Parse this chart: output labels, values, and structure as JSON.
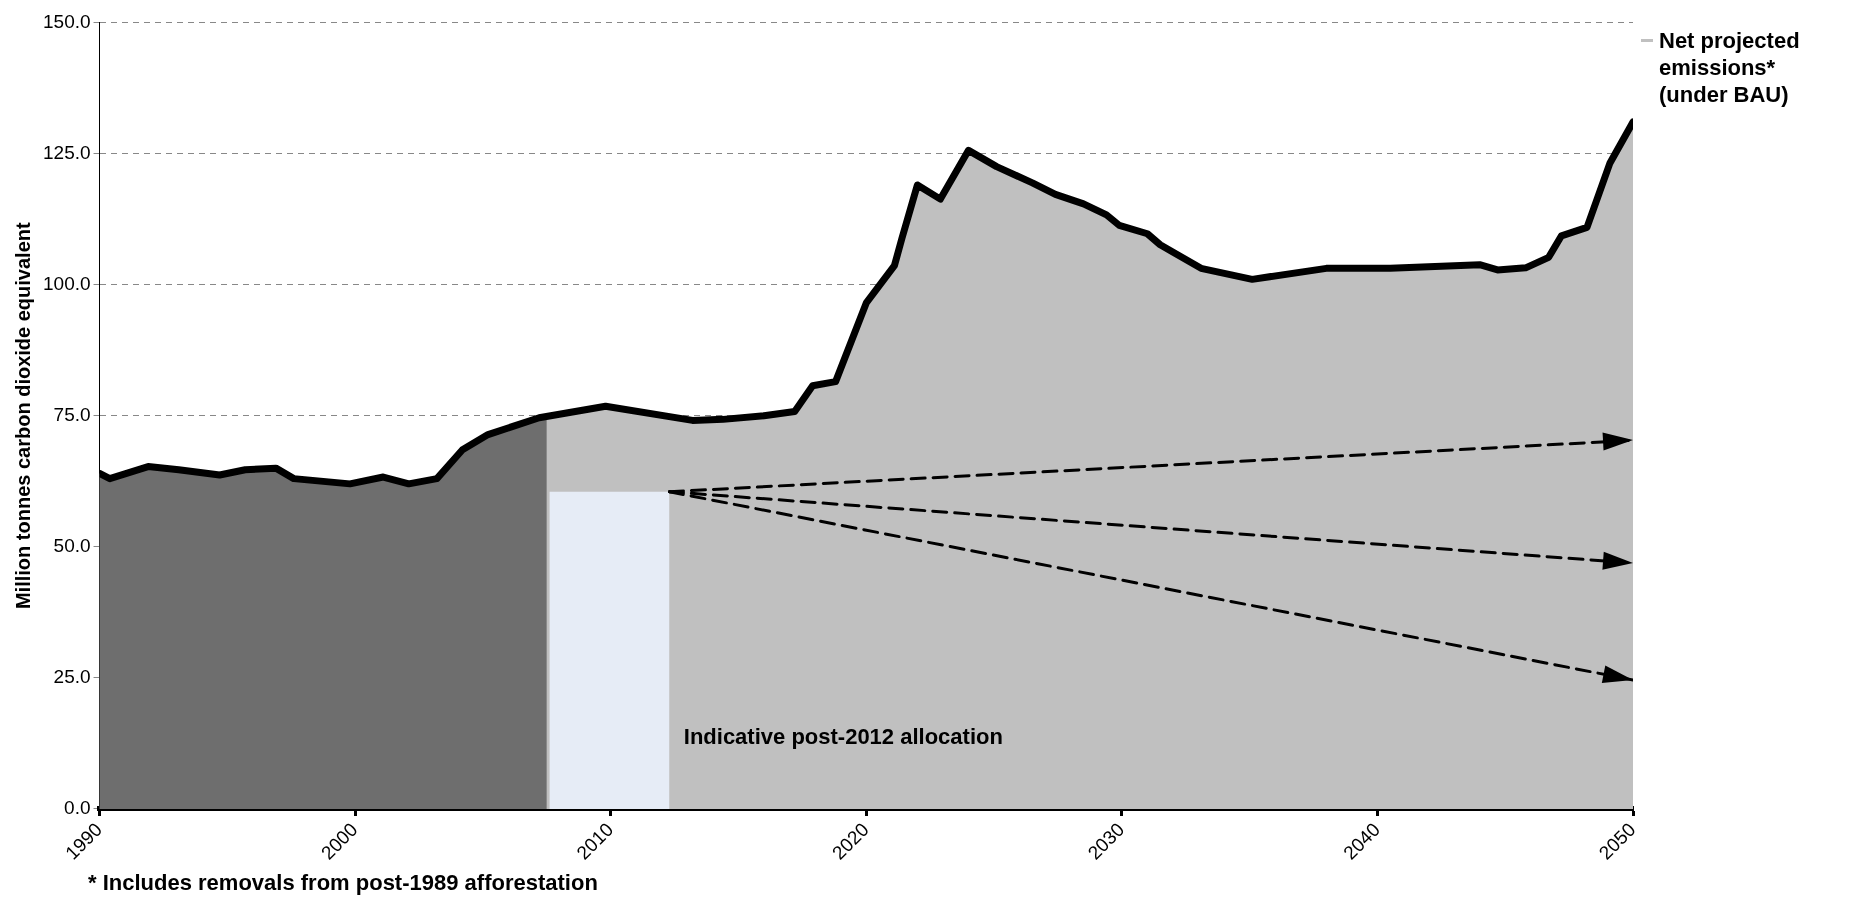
{
  "chart_data": {
    "type": "area",
    "ylabel": "Million tonnes carbon dioxide equivalent",
    "xlim": [
      1990,
      2050
    ],
    "xticks": [
      1990,
      2000,
      2010,
      2020,
      2030,
      2040,
      2050
    ],
    "ylim": [
      0,
      150
    ],
    "yticks": [
      {
        "value": 0,
        "label": "0.0"
      },
      {
        "value": 25,
        "label": "25.0"
      },
      {
        "value": 50,
        "label": "50.0"
      },
      {
        "value": 75,
        "label": "75.0"
      },
      {
        "value": 100,
        "label": "100.0"
      },
      {
        "value": 125,
        "label": "125.0"
      },
      {
        "value": 150,
        "label": "150.0"
      }
    ],
    "grid": "y",
    "legend": "right",
    "marker": "none",
    "series": [
      {
        "type": "line",
        "color": "#000000",
        "line_style": "dashed",
        "x": [
          2012.3,
          2050
        ],
        "values": [
          60.5,
          70.3
        ]
      },
      {
        "type": "line",
        "color": "#000000",
        "line_style": "dashed",
        "x": [
          2012.3,
          2050
        ],
        "values": [
          60.5,
          46.9
        ]
      },
      {
        "type": "line",
        "color": "#000000",
        "line_style": "dashed",
        "x": [
          2012.3,
          2050
        ],
        "values": [
          60.5,
          24.6
        ]
      },
      {
        "color": "#e6ecf6",
        "x": [
          2007.6,
          2012.3
        ],
        "values": [
          60.5,
          60.5
        ]
      },
      {
        "color": "#6e6e6e",
        "x": [
          1990,
          1990.4,
          1991.9,
          1993.1,
          1994.7,
          1995.7,
          1996.9,
          1997.6,
          1999.8,
          2001.1,
          2002.1,
          2003.2,
          2004.2,
          2005.2,
          2007.2,
          2007.5
        ],
        "values": [
          64.0,
          63.0,
          65.3,
          64.7,
          63.7,
          64.7,
          65.0,
          63.0,
          62.0,
          63.3,
          62.0,
          63.0,
          68.5,
          71.4,
          74.6,
          74.7
        ]
      },
      {
        "name": "Net projected emissions* (under BAU)",
        "color": "#c0c0c0",
        "x": [
          1990,
          1990.4,
          1991.9,
          1993.1,
          1994.7,
          1995.7,
          1996.9,
          1997.6,
          1999.8,
          2001.1,
          2002.1,
          2003.2,
          2004.2,
          2005.2,
          2007.2,
          2009.8,
          2013.2,
          2014.4,
          2016,
          2017.2,
          2017.9,
          2018.8,
          2020,
          2021.1,
          2021.4,
          2022,
          2022.9,
          2024,
          2025.1,
          2026.5,
          2027.4,
          2028.5,
          2029.4,
          2029.9,
          2031,
          2031.5,
          2033.1,
          2035.1,
          2038,
          2040.5,
          2044,
          2044.7,
          2045.8,
          2046.7,
          2047.2,
          2048.2,
          2049.1,
          2050
        ],
        "values": [
          64.0,
          63.0,
          65.3,
          64.7,
          63.7,
          64.7,
          65.0,
          63.0,
          62.0,
          63.3,
          62.0,
          63.0,
          68.5,
          71.4,
          74.6,
          76.8,
          74.1,
          74.3,
          75.0,
          75.8,
          80.7,
          81.5,
          96.5,
          103.6,
          108.9,
          119.0,
          116.3,
          125.6,
          122.5,
          119.4,
          117.2,
          115.4,
          113.3,
          111.3,
          109.7,
          107.6,
          103.1,
          101.0,
          103.1,
          103.1,
          103.8,
          102.8,
          103.2,
          105.2,
          109.3,
          110.9,
          123.2,
          131.0
        ]
      }
    ],
    "annotations": [
      "Indicative post-2012 allocation",
      "* Includes removals from post-1989 afforestation"
    ]
  }
}
